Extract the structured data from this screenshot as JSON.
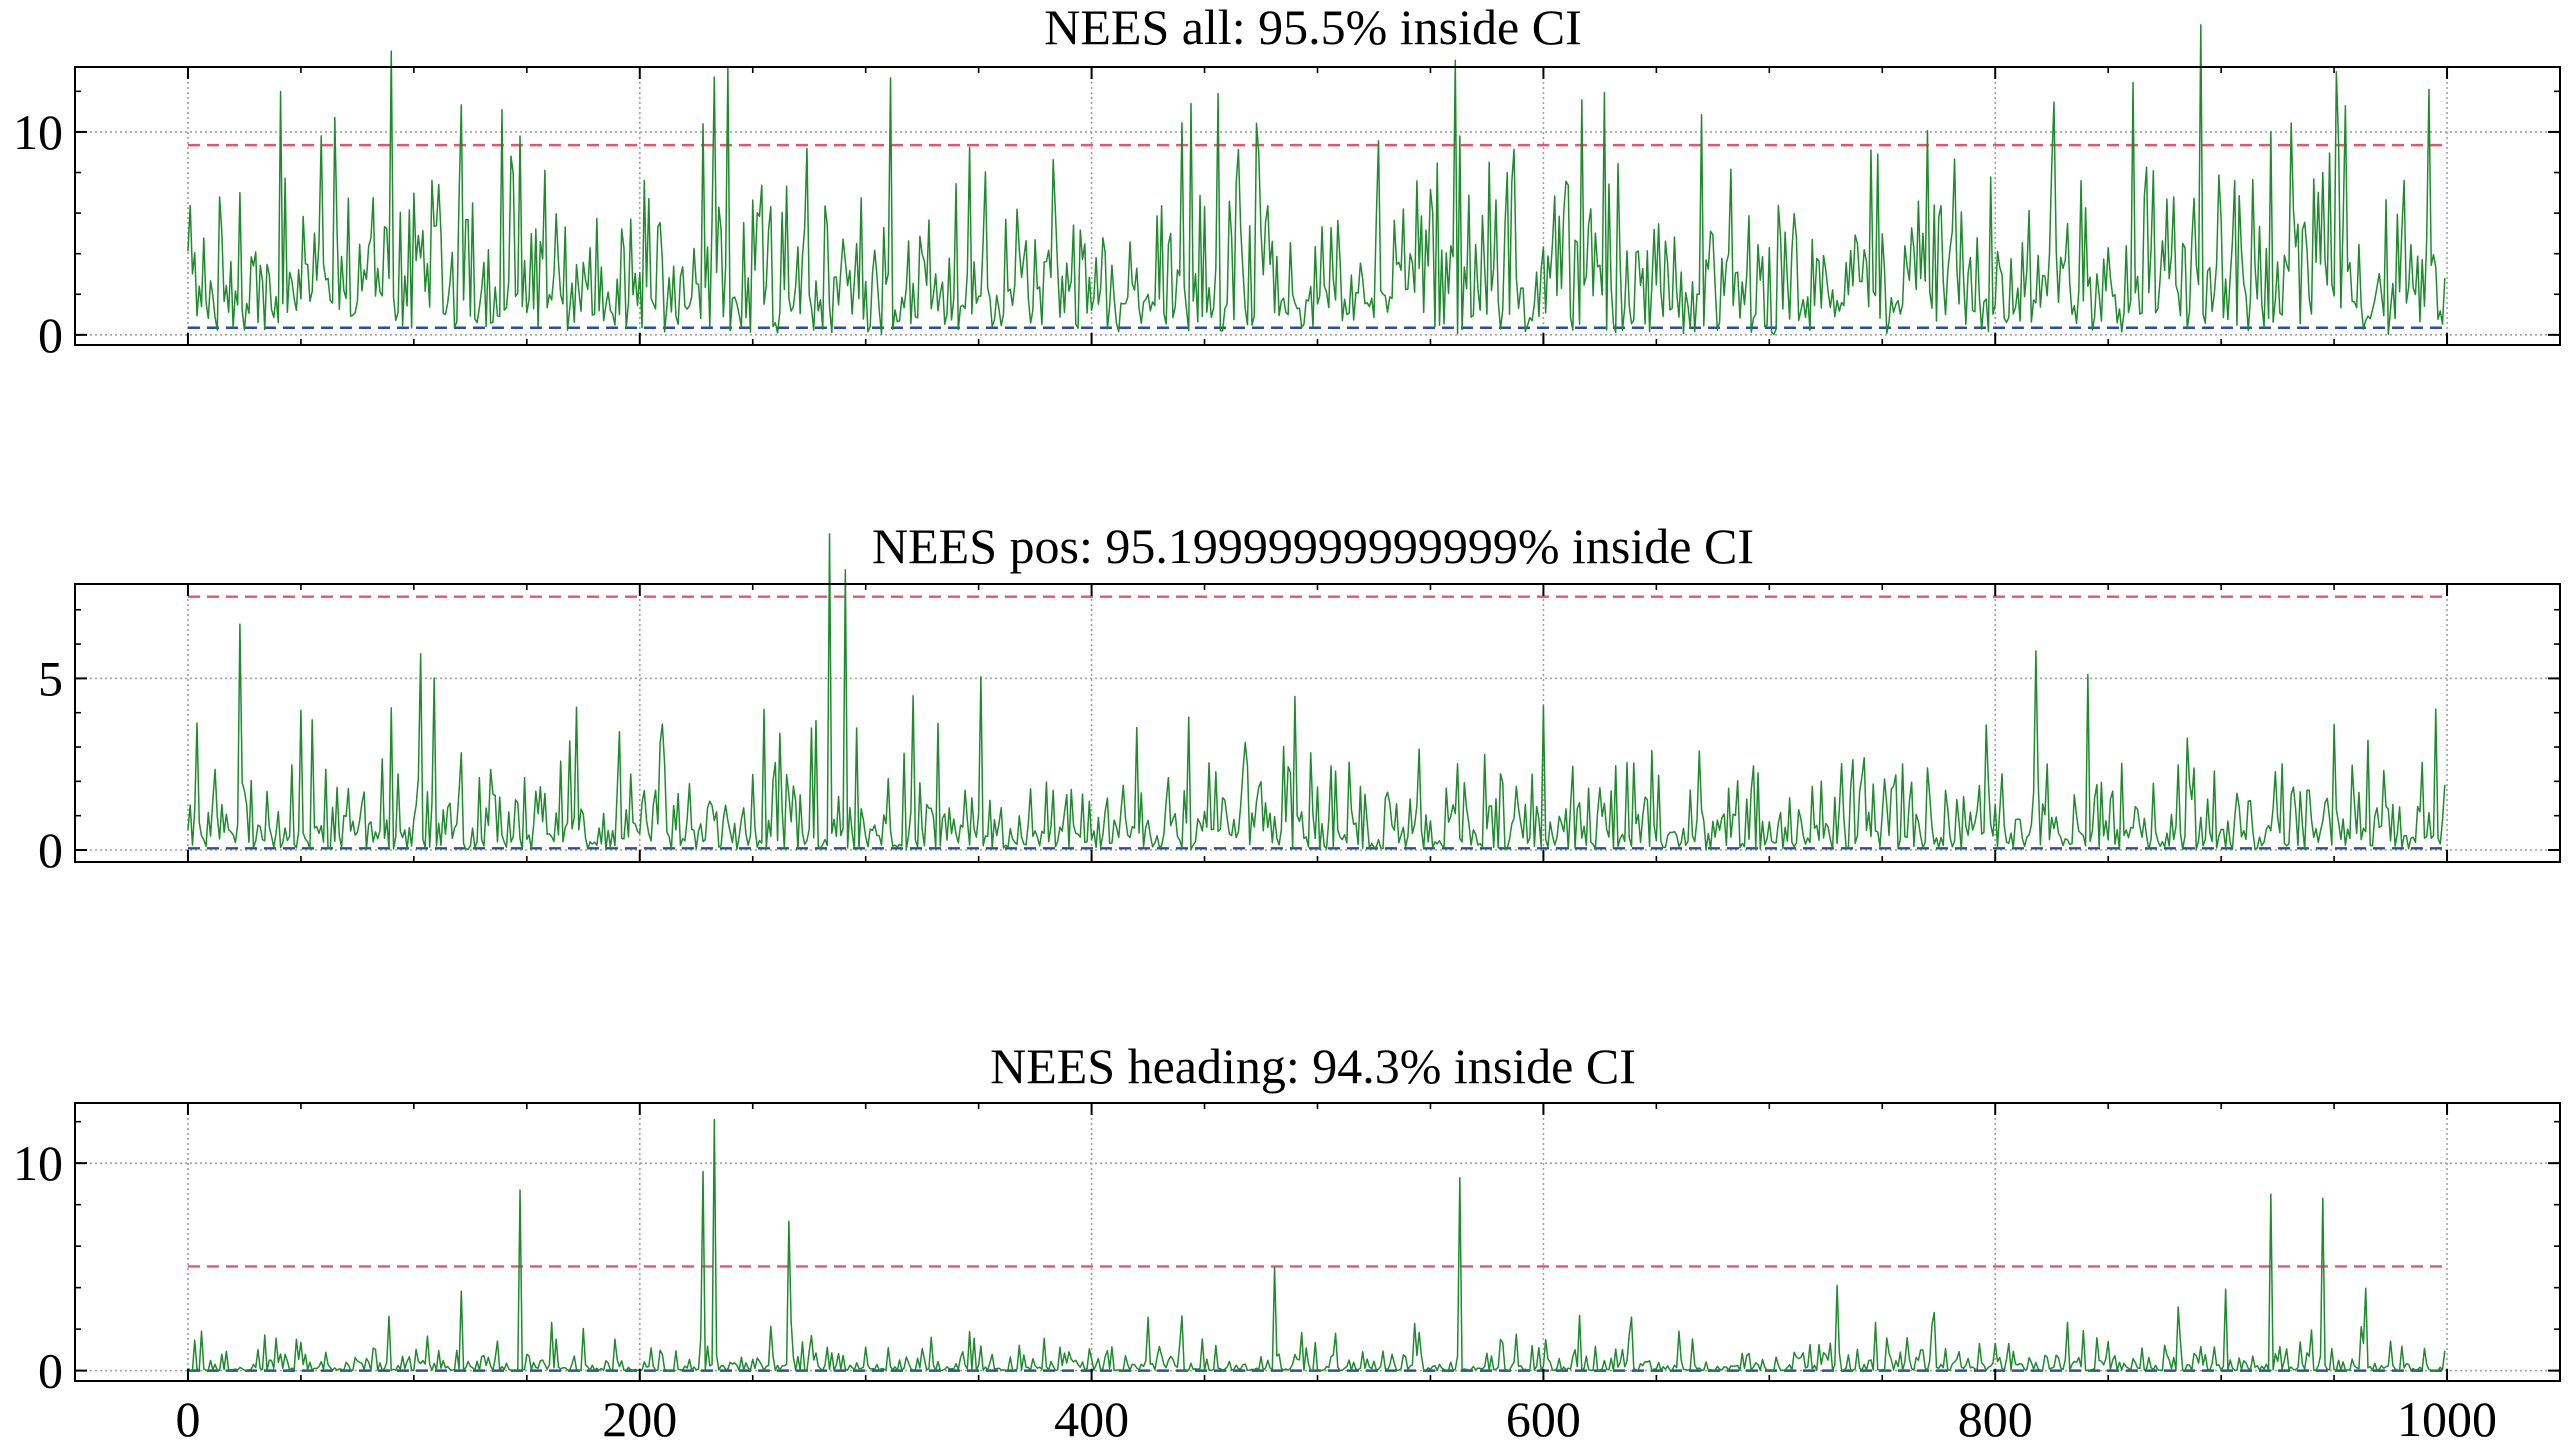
{
  "figure": {
    "background": "#ffffff",
    "colors": {
      "series": "#1f8a2e",
      "upper_ci": "#e8536e",
      "lower_ci": "#2b4f9e",
      "grid": "#a0a0a0",
      "axes": "#000000"
    }
  },
  "chart_data": [
    {
      "type": "line",
      "title": "NEES all: 95.5% inside CI",
      "xlabel": "",
      "ylabel": "",
      "xlim": [
        -50,
        1050
      ],
      "ylim": [
        -0.5,
        13.2
      ],
      "xticks": [
        0,
        200,
        400,
        600,
        800,
        1000
      ],
      "xtick_labels_visible": false,
      "yticks": [
        0,
        10
      ],
      "ytick_labels": [
        "0",
        "10"
      ],
      "grid": true,
      "legend": "none",
      "ci_upper": 9.35,
      "ci_lower": 0.35,
      "x_range": [
        0,
        999
      ],
      "n_points": 1000,
      "series_summary": "noisy NEES samples, typically between 0 and 7.5",
      "peaks": [
        [
          147,
          9.8
        ],
        [
          228,
          10.4
        ],
        [
          233,
          12.7
        ],
        [
          563,
          9.8
        ],
        [
          748,
          8.9
        ],
        [
          922,
          10.0
        ],
        [
          952,
          9.4
        ]
      ]
    },
    {
      "type": "line",
      "title": "NEES pos: 95.19999999999999% inside CI",
      "xlabel": "",
      "ylabel": "",
      "xlim": [
        -50,
        1050
      ],
      "ylim": [
        -0.35,
        7.75
      ],
      "xticks": [
        0,
        200,
        400,
        600,
        800,
        1000
      ],
      "xtick_labels_visible": false,
      "yticks": [
        0,
        5
      ],
      "ytick_labels": [
        "0",
        "5"
      ],
      "grid": true,
      "legend": "none",
      "ci_upper": 7.38,
      "ci_lower": 0.05,
      "x_range": [
        0,
        999
      ],
      "n_points": 1000,
      "series_summary": "noisy NEES samples, typically between 0 and 3.5",
      "peaks": [
        [
          4,
          3.7
        ],
        [
          255,
          4.1
        ],
        [
          600,
          4.2
        ],
        [
          818,
          5.8
        ]
      ]
    },
    {
      "type": "line",
      "title": "NEES heading: 94.3% inside CI",
      "xlabel": "",
      "ylabel": "",
      "xlim": [
        -50,
        1050
      ],
      "ylim": [
        -0.5,
        12.9
      ],
      "xticks": [
        0,
        200,
        400,
        600,
        800,
        1000
      ],
      "xtick_labels": [
        "0",
        "200",
        "400",
        "600",
        "800",
        "1000"
      ],
      "yticks": [
        0,
        10
      ],
      "ytick_labels": [
        "0",
        "10"
      ],
      "grid": true,
      "legend": "none",
      "ci_upper": 5.02,
      "ci_lower": 0.0,
      "x_range": [
        0,
        999
      ],
      "n_points": 1000,
      "series_summary": "noisy NEES samples, typically between 0 and 5, with sparse spikes",
      "peaks": [
        [
          147,
          8.7
        ],
        [
          228,
          9.6
        ],
        [
          233,
          12.1
        ],
        [
          266,
          7.2
        ],
        [
          563,
          9.3
        ],
        [
          922,
          8.5
        ],
        [
          945,
          8.3
        ]
      ]
    }
  ]
}
